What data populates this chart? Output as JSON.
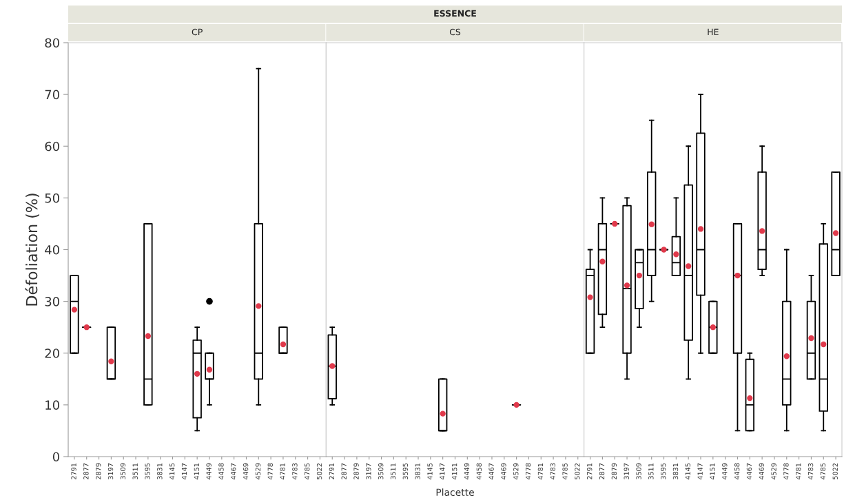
{
  "chart_data": [
    {
      "type": "box",
      "title": "CP",
      "ylabel": "Défoliation (%)",
      "annotations": [
        "ESSENCE"
      ],
      "ylim": [
        0,
        80
      ],
      "yticks": [
        0,
        10,
        20,
        30,
        40,
        50,
        60,
        70,
        80
      ],
      "categories": [
        "2791",
        "2877",
        "2879",
        "3197",
        "3509",
        "3511",
        "3595",
        "3831",
        "4145",
        "4147",
        "4151",
        "4449",
        "4458",
        "4467",
        "4469",
        "4529",
        "4778",
        "4781",
        "4783",
        "4785",
        "5022"
      ],
      "boxes": [
        {
          "low": 20,
          "q1": 20,
          "median": 30,
          "q3": 35,
          "high": 35,
          "mean": 28.4
        },
        {
          "low": 25,
          "q1": 25,
          "median": 25,
          "q3": 25,
          "high": 25,
          "mean": 25
        },
        null,
        {
          "low": 15,
          "q1": 15,
          "median": 15,
          "q3": 25,
          "high": 25,
          "mean": 18.4
        },
        null,
        null,
        {
          "low": 10,
          "q1": 10,
          "median": 15,
          "q3": 45,
          "high": 45,
          "mean": 23.3
        },
        null,
        null,
        null,
        {
          "low": 5,
          "q1": 7.5,
          "median": 20,
          "q3": 22.5,
          "high": 25,
          "mean": 16
        },
        {
          "low": 10,
          "q1": 15,
          "median": 15,
          "q3": 20,
          "high": 20,
          "mean": 16.8,
          "outliers": [
            30
          ]
        },
        null,
        null,
        null,
        {
          "low": 10,
          "q1": 15,
          "median": 20,
          "q3": 45,
          "high": 75,
          "mean": 29.1
        },
        null,
        {
          "low": 20,
          "q1": 20,
          "median": 20,
          "q3": 25,
          "high": 25,
          "mean": 21.7
        },
        null,
        null,
        null
      ]
    },
    {
      "type": "box",
      "title": "CS",
      "xlabel": "Placette",
      "tick_labels": "x",
      "ylim": [
        0,
        80
      ],
      "yticks": [
        0,
        10,
        20,
        30,
        40,
        50,
        60,
        70,
        80
      ],
      "categories": [
        "2791",
        "2877",
        "2879",
        "3197",
        "3509",
        "3511",
        "3595",
        "3831",
        "4145",
        "4147",
        "4151",
        "4449",
        "4458",
        "4467",
        "4469",
        "4529",
        "4778",
        "4781",
        "4783",
        "4785",
        "5022"
      ],
      "boxes": [
        {
          "low": 10,
          "q1": 11.2,
          "median": 17.5,
          "q3": 23.5,
          "high": 25,
          "mean": 17.5
        },
        null,
        null,
        null,
        null,
        null,
        null,
        null,
        null,
        {
          "low": 5,
          "q1": 5,
          "median": 5,
          "q3": 15,
          "high": 15,
          "mean": 8.3
        },
        null,
        null,
        null,
        null,
        null,
        {
          "low": 10,
          "q1": 10,
          "median": 10,
          "q3": 10,
          "high": 10,
          "mean": 10
        },
        null,
        null,
        null,
        null,
        null
      ]
    },
    {
      "type": "box",
      "title": "HE",
      "tick_labels": "x",
      "ylim": [
        0,
        80
      ],
      "yticks": [
        0,
        10,
        20,
        30,
        40,
        50,
        60,
        70,
        80
      ],
      "categories": [
        "2791",
        "2877",
        "2879",
        "3197",
        "3509",
        "3511",
        "3595",
        "3831",
        "4145",
        "4147",
        "4151",
        "4449",
        "4458",
        "4467",
        "4469",
        "4529",
        "4778",
        "4781",
        "4783",
        "4785",
        "5022"
      ],
      "boxes": [
        {
          "low": 20,
          "q1": 20,
          "median": 35,
          "q3": 36.2,
          "high": 40,
          "mean": 30.8
        },
        {
          "low": 25,
          "q1": 27.5,
          "median": 40,
          "q3": 45,
          "high": 50,
          "mean": 37.7
        },
        {
          "low": 45,
          "q1": 45,
          "median": 45,
          "q3": 45,
          "high": 45,
          "mean": 45
        },
        {
          "low": 15,
          "q1": 20,
          "median": 32.5,
          "q3": 48.5,
          "high": 50,
          "mean": 33.1
        },
        {
          "low": 25,
          "q1": 28.6,
          "median": 37.5,
          "q3": 40,
          "high": 40,
          "mean": 35
        },
        {
          "low": 30,
          "q1": 35,
          "median": 40,
          "q3": 55,
          "high": 65,
          "mean": 44.9
        },
        {
          "low": 40,
          "q1": 40,
          "median": 40,
          "q3": 40,
          "high": 40,
          "mean": 40
        },
        {
          "low": 35,
          "q1": 35,
          "median": 37.5,
          "q3": 42.5,
          "high": 50,
          "mean": 39.1
        },
        {
          "low": 15,
          "q1": 22.5,
          "median": 35,
          "q3": 52.5,
          "high": 60,
          "mean": 36.8
        },
        {
          "low": 20,
          "q1": 31.2,
          "median": 40,
          "q3": 62.5,
          "high": 70,
          "mean": 44
        },
        {
          "low": 20,
          "q1": 20,
          "median": 25,
          "q3": 30,
          "high": 30,
          "mean": 25
        },
        null,
        {
          "low": 5,
          "q1": 20,
          "median": 35,
          "q3": 45,
          "high": 45,
          "mean": 35
        },
        {
          "low": 5,
          "q1": 5,
          "median": 10,
          "q3": 18.8,
          "high": 20,
          "mean": 11.3
        },
        {
          "low": 35,
          "q1": 36.2,
          "median": 40,
          "q3": 55,
          "high": 60,
          "mean": 43.6
        },
        null,
        {
          "low": 5,
          "q1": 10,
          "median": 15,
          "q3": 30,
          "high": 40,
          "mean": 19.4
        },
        null,
        {
          "low": 15,
          "q1": 15,
          "median": 20,
          "q3": 30,
          "high": 35,
          "mean": 22.9
        },
        {
          "low": 5,
          "q1": 8.8,
          "median": 15,
          "q3": 41.1,
          "high": 45,
          "mean": 21.7
        },
        {
          "low": 35,
          "q1": 35,
          "median": 40,
          "q3": 55,
          "high": 55,
          "mean": 43.2
        }
      ]
    }
  ]
}
